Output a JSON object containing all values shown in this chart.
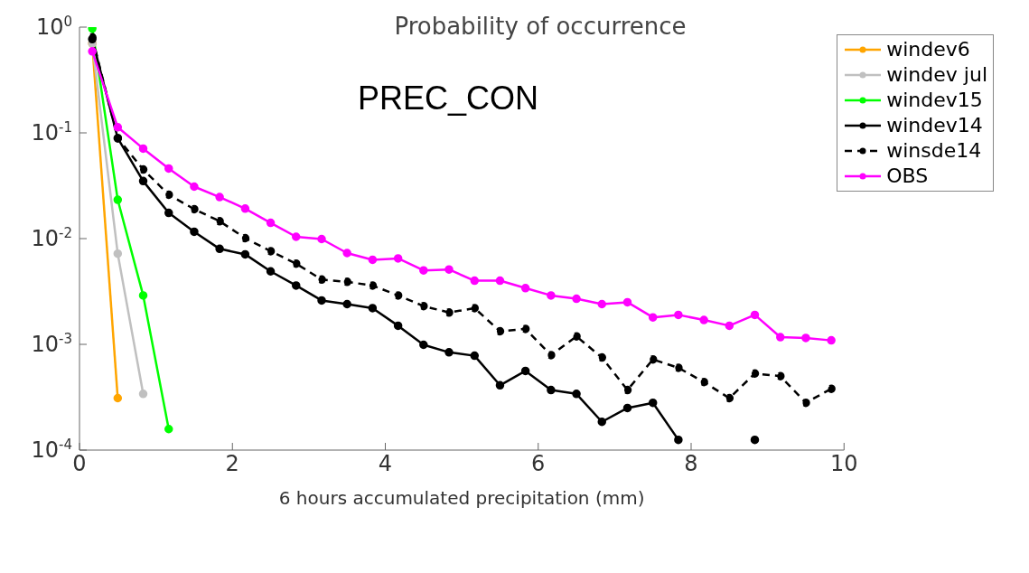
{
  "chart_data": {
    "type": "line",
    "title": "Probability of occurrence",
    "xlabel": "6 hours accumulated precipitation (mm)",
    "annotations": [
      "PREC_CON"
    ],
    "x": [
      0.167,
      0.5,
      0.833,
      1.167,
      1.5,
      1.833,
      2.167,
      2.5,
      2.833,
      3.167,
      3.5,
      3.833,
      4.167,
      4.5,
      4.833,
      5.167,
      5.5,
      5.833,
      6.167,
      6.5,
      6.833,
      7.167,
      7.5,
      7.833,
      8.167,
      8.5,
      8.833,
      9.167,
      9.5,
      9.833
    ],
    "series": [
      {
        "name": "windev6",
        "color": "#ffa500",
        "values": [
          0.7,
          0.00031,
          null,
          null,
          null,
          null,
          null,
          null,
          null,
          null,
          null,
          null,
          null,
          null,
          null,
          null,
          null,
          null,
          null,
          null,
          null,
          null,
          null,
          null,
          null,
          null,
          null,
          null,
          null,
          null
        ]
      },
      {
        "name": "windev jul",
        "color": "#c0c0c0",
        "values": [
          0.7,
          0.0072,
          0.00034,
          null,
          null,
          null,
          null,
          null,
          null,
          null,
          null,
          null,
          null,
          null,
          null,
          null,
          null,
          null,
          null,
          null,
          null,
          null,
          null,
          null,
          null,
          null,
          null,
          null,
          null,
          null
        ]
      },
      {
        "name": "windev15",
        "color": "#00ff00",
        "values": [
          0.97,
          0.0233,
          0.0029,
          0.000158,
          null,
          null,
          null,
          null,
          null,
          null,
          null,
          null,
          null,
          null,
          null,
          null,
          null,
          null,
          null,
          null,
          null,
          null,
          null,
          null,
          null,
          null,
          null,
          null,
          null,
          null
        ]
      },
      {
        "name": "windev14",
        "color": "#000000",
        "values": [
          0.77,
          0.089,
          0.035,
          0.0175,
          0.0116,
          0.008,
          0.0071,
          0.0049,
          0.0036,
          0.0026,
          0.0024,
          0.0022,
          0.0015,
          0.00099,
          0.00084,
          0.00078,
          0.00041,
          0.00056,
          0.00037,
          0.00034,
          0.000185,
          0.00025,
          0.00028,
          0.000125,
          null,
          null,
          0.000125,
          null,
          null,
          null
        ]
      },
      {
        "name": "winsde14",
        "color": "#000000",
        "line_style": "dashed",
        "values": [
          0.8,
          0.089,
          0.045,
          0.026,
          0.019,
          0.0146,
          0.0101,
          0.0076,
          0.0058,
          0.0041,
          0.0039,
          0.0036,
          0.0029,
          0.0023,
          0.002,
          0.0022,
          0.00133,
          0.0014,
          0.00079,
          0.00119,
          0.00075,
          0.00037,
          0.00072,
          0.0006,
          0.00044,
          0.00031,
          0.00053,
          0.0005,
          0.00028,
          0.00038
        ]
      },
      {
        "name": "OBS",
        "color": "#ff00ff",
        "values": [
          0.59,
          0.113,
          0.071,
          0.046,
          0.031,
          0.0247,
          0.0192,
          0.0141,
          0.0104,
          0.0099,
          0.0073,
          0.0063,
          0.0065,
          0.005,
          0.0051,
          0.004,
          0.004,
          0.0034,
          0.0029,
          0.0027,
          0.0024,
          0.0025,
          0.0018,
          0.0019,
          0.0017,
          0.0015,
          0.0019,
          0.00117,
          0.00115,
          0.00109
        ]
      }
    ],
    "log": true,
    "xlim": [
      0,
      10
    ],
    "xticks": [
      0,
      2,
      4,
      6,
      8,
      10
    ],
    "ylim": [
      0.0001,
      1
    ],
    "yticks": [
      {
        "value": 1,
        "label": "10$^{0}$"
      },
      {
        "value": 0.1,
        "label": "10$^{-1}$"
      },
      {
        "value": 0.01,
        "label": "10$^{-2}$"
      },
      {
        "value": 0.001,
        "label": "10$^{-3}$"
      },
      {
        "value": 0.0001,
        "label": "10$^{-4}$"
      }
    ],
    "grid": false,
    "legend": "top right",
    "marker": "circle",
    "line_style": "solid"
  }
}
